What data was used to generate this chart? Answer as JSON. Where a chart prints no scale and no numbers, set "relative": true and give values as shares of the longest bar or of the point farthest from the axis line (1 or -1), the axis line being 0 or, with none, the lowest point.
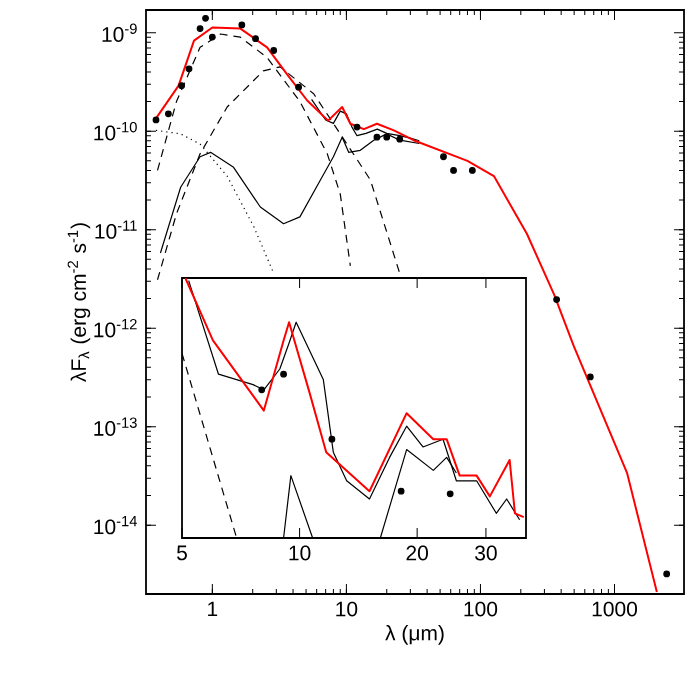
{
  "chart_data": [
    {
      "type": "line",
      "log": "xy",
      "xlabel": "λ (μm)",
      "ylabel": "λF$_{λ}$ (erg cm$^{-2}$ s$^{-1}$)",
      "xlim": [
        0.32,
        3300
      ],
      "ylim": [
        2e-15,
        1.7e-09
      ],
      "xticks": [
        1,
        10,
        100,
        1000
      ],
      "yticks": [
        {
          "value": 1e-14,
          "label": "10$^{-14}$"
        },
        {
          "value": 1e-13,
          "label": "10$^{-13}$"
        },
        {
          "value": 1e-12,
          "label": "10$^{-12}$"
        },
        {
          "value": 1e-11,
          "label": "10$^{-11}$"
        },
        {
          "value": 1e-10,
          "label": "10$^{-10}$"
        },
        {
          "value": 1e-09,
          "label": "10$^{-9}$"
        }
      ],
      "series": [
        {
          "type": "line",
          "line_style": "dotted",
          "color": "#000000",
          "x": [
            0.38,
            0.58,
            0.81,
            1.29,
            2.04,
            2.87
          ],
          "values": [
            1.02e-10,
            9.4e-11,
            7.4e-11,
            3.5e-11,
            1.07e-11,
            3.6e-12
          ]
        },
        {
          "type": "line",
          "line_style": "dashed",
          "color": "#000000",
          "x": [
            0.39,
            0.54,
            0.81,
            1.15,
            1.62,
            2.56,
            4.5,
            7.2,
            9.0,
            10.7
          ],
          "values": [
            4e-11,
            2e-10,
            7.1e-10,
            9.7e-10,
            9e-10,
            5.6e-10,
            2e-10,
            5.9e-11,
            2.3e-11,
            4.3e-12
          ]
        },
        {
          "type": "line",
          "line_style": "dashed",
          "color": "#000000",
          "x": [
            0.39,
            0.54,
            0.81,
            1.29,
            2.4,
            3.2,
            5.7,
            10.1,
            15.1,
            25
          ],
          "values": [
            3.1e-12,
            1.45e-11,
            5.9e-11,
            1.76e-10,
            4.1e-10,
            4.5e-10,
            2.4e-10,
            7.4e-11,
            3.2e-11,
            3.6e-12
          ]
        },
        {
          "type": "line",
          "line_style": "solid",
          "color": "#000000",
          "x": [
            0.41,
            0.58,
            0.81,
            0.97,
            1.44,
            2.28,
            3.4,
            4.5,
            6.4,
            8.0,
            9.3,
            10.4,
            12.7,
            16,
            20,
            25,
            35
          ],
          "values": [
            5.8e-12,
            2.7e-11,
            5.5e-11,
            6.1e-11,
            4.3e-11,
            1.7e-11,
            1.15e-11,
            1.35e-11,
            3.2e-11,
            5.5e-11,
            8.7e-11,
            6.1e-11,
            6.4e-11,
            8.1e-11,
            9.4e-11,
            8.1e-11,
            7.5e-11
          ]
        },
        {
          "type": "line",
          "line_style": "solid",
          "color": "#000000",
          "x": [
            5.5,
            7,
            8,
            9,
            10,
            11,
            12,
            14,
            17,
            20,
            25,
            30,
            35
          ],
          "values": [
            2.1e-10,
            1.3e-10,
            1.2e-10,
            1.6e-10,
            1.5e-10,
            1.1e-10,
            9e-11,
            9.5e-11,
            1.05e-10,
            9.5e-11,
            9e-11,
            8.5e-11,
            8e-11
          ]
        },
        {
          "type": "line",
          "line_style": "solid",
          "color": "#ff0000",
          "x": [
            0.38,
            0.56,
            0.73,
            1.0,
            1.62,
            2.56,
            3.6,
            5.1,
            7.3,
            9.3,
            10.7,
            13.5,
            16.9,
            22.6,
            31.7,
            80,
            126,
            222,
            354,
            496,
            1240,
            2070
          ],
          "values": [
            1.35e-10,
            2.9e-10,
            8.3e-10,
            1.13e-09,
            1.1e-09,
            7.1e-10,
            3.8e-10,
            2.05e-10,
            1.28e-10,
            1.76e-10,
            1.19e-10,
            1.05e-10,
            1.19e-10,
            1.02e-10,
            8.1e-11,
            5e-11,
            3.5e-11,
            9.1e-12,
            2.2e-12,
            6.6e-13,
            3.4e-14,
            2.1e-15
          ]
        },
        {
          "type": "scatter",
          "marker": "circle",
          "color": "#000000",
          "x": [
            0.38,
            0.47,
            0.59,
            0.67,
            0.81,
            0.89,
            1.0,
            1.66,
            2.1,
            2.87,
            4.4,
            12,
            16.9,
            20,
            25,
            53,
            63,
            87,
            370,
            660,
            2450
          ],
          "values": [
            1.3e-10,
            1.5e-10,
            2.9e-10,
            4.3e-10,
            1.1e-09,
            1.4e-09,
            9e-10,
            1.2e-09,
            8.7e-10,
            6.6e-10,
            2.8e-10,
            1.1e-10,
            8.7e-11,
            8.7e-11,
            8.3e-11,
            5.5e-11,
            4e-11,
            4e-11,
            1.95e-12,
            3.2e-13,
            3.2e-15
          ]
        }
      ]
    },
    {
      "type": "line",
      "log": "x",
      "relative": true,
      "xlim": [
        5,
        38
      ],
      "xticks": [
        5,
        10,
        20,
        30
      ],
      "tick_labels": "x",
      "series": [
        {
          "type": "line",
          "line_style": "dashed",
          "color": "#000000",
          "x": [
            5.0,
            6.9
          ],
          "values": [
            0.71,
            0
          ]
        },
        {
          "type": "line",
          "line_style": "solid",
          "color": "#000000",
          "x": [
            9.1,
            9.5,
            10.8,
            16.1,
            18.8,
            22,
            23.8,
            25.2
          ],
          "values": [
            0,
            0.24,
            0,
            0,
            0.34,
            0.26,
            0.31,
            0.25
          ]
        },
        {
          "type": "line",
          "line_style": "solid",
          "color": "#000000",
          "x": [
            5.2,
            6.2,
            7.6,
            8.1,
            8.9,
            9.4,
            9.8,
            11.5,
            12.2,
            13.2,
            15.1,
            17.0,
            18.8,
            20.7,
            23.3,
            25.2,
            28.4,
            31.9,
            33.9,
            36.6
          ],
          "values": [
            0.99,
            0.63,
            0.59,
            0.57,
            0.65,
            0.75,
            0.83,
            0.61,
            0.33,
            0.22,
            0.15,
            0.31,
            0.43,
            0.35,
            0.38,
            0.22,
            0.22,
            0.095,
            0.15,
            0.07
          ]
        },
        {
          "type": "line",
          "line_style": "solid",
          "color": "#ff0000",
          "x": [
            5.1,
            6.0,
            8.1,
            9.1,
            9.4,
            10.6,
            11.7,
            15.1,
            18.8,
            22,
            23.8,
            25.7,
            28.4,
            30.7,
            34.5,
            35.6,
            37.5
          ],
          "values": [
            1.0,
            0.76,
            0.49,
            0.76,
            0.83,
            0.56,
            0.33,
            0.18,
            0.48,
            0.38,
            0.38,
            0.24,
            0.24,
            0.16,
            0.3,
            0.095,
            0.08
          ]
        },
        {
          "type": "scatter",
          "marker": "circle",
          "color": "#000000",
          "x": [
            8.0,
            9.1,
            12.1,
            18.2,
            24.3
          ],
          "values": [
            0.57,
            0.63,
            0.38,
            0.18,
            0.17
          ]
        }
      ]
    }
  ]
}
